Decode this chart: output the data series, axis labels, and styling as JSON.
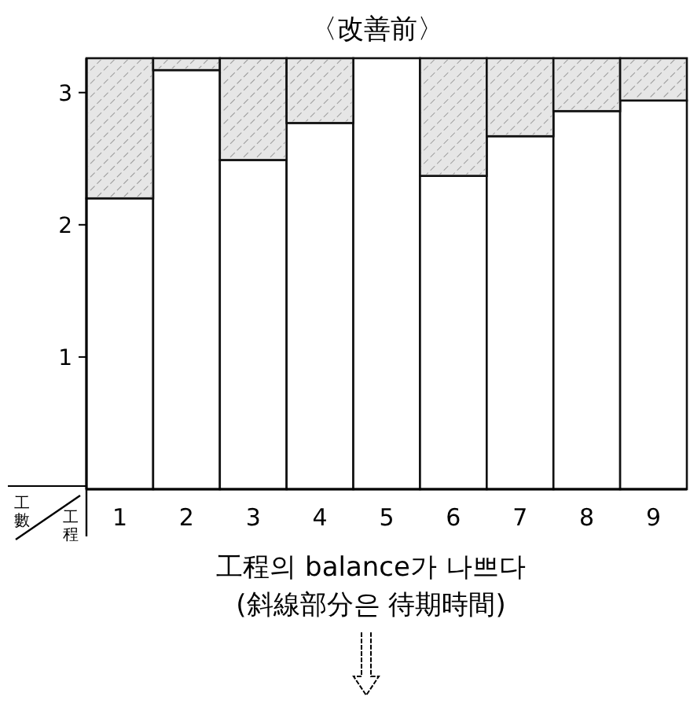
{
  "chart_data": {
    "type": "bar",
    "title": "〈改善前〉",
    "xlabel": "工程",
    "ylabel": "工數",
    "categories": [
      "1",
      "2",
      "3",
      "4",
      "5",
      "6",
      "7",
      "8",
      "9"
    ],
    "stacked": true,
    "series": [
      {
        "color": "#ffffff",
        "values": [
          2.2,
          3.17,
          2.49,
          2.77,
          3.26,
          2.37,
          2.67,
          2.86,
          2.94
        ]
      },
      {
        "color": "#e6e6e6",
        "values": [
          1.06,
          0.09,
          0.77,
          0.49,
          0,
          0.89,
          0.59,
          0.4,
          0.32
        ]
      }
    ],
    "ylim": [
      0,
      3.26
    ],
    "yticks": [
      1,
      2,
      3
    ],
    "annotations": [
      "工程의 balance가 나쁘다",
      "(斜線部分은 待期時間)"
    ]
  }
}
